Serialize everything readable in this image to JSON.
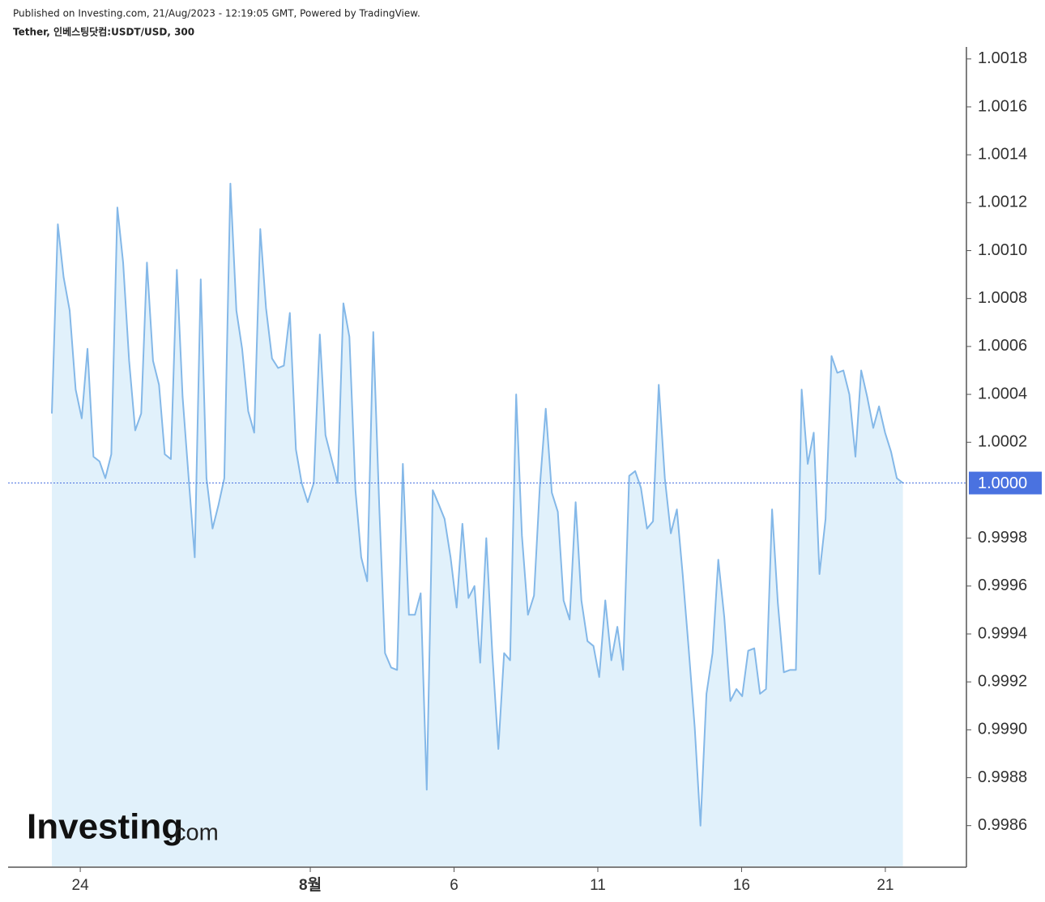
{
  "chart_data": {
    "type": "area",
    "source": "Published on Investing.com, 21/Aug/2023 - 12:19:05 GMT, Powered by TradingView.",
    "title": "Tether, 인베스팅닷컴:USDT/USD, 300",
    "watermark": {
      "brand": "Investing",
      "suffix": ".com"
    },
    "color": "#84b8e8",
    "fill": "#e1f1fb",
    "xlim": [
      21.49,
      54.82
    ],
    "xticks": [
      {
        "value": 24,
        "label": "24"
      },
      {
        "value": 32,
        "label": "8월"
      },
      {
        "value": 37,
        "label": "6"
      },
      {
        "value": 42,
        "label": "11"
      },
      {
        "value": 47,
        "label": "16"
      },
      {
        "value": 52,
        "label": "21"
      }
    ],
    "ylim": [
      0.99843,
      1.00185
    ],
    "yticks": [
      0.9986,
      0.9988,
      {
        "value": 0.999,
        "label": "0.9990"
      },
      0.9992,
      0.9994,
      0.9996,
      0.9998,
      1.0002,
      1.0004,
      1.0006,
      1.0008,
      {
        "value": 1.001,
        "label": "1.0010"
      },
      1.0012,
      1.0014,
      1.0016,
      1.0018
    ],
    "price_line": {
      "value": 1.00003,
      "label": "1.0000",
      "color": "#4a72e0"
    },
    "x": [
      23.01,
      23.22,
      23.42,
      23.63,
      23.84,
      24.05,
      24.25,
      24.46,
      24.67,
      24.87,
      25.08,
      25.29,
      25.49,
      25.7,
      25.91,
      26.12,
      26.32,
      26.53,
      26.74,
      26.94,
      27.15,
      27.36,
      27.56,
      27.77,
      27.98,
      28.19,
      28.39,
      28.6,
      28.81,
      29.01,
      29.22,
      29.43,
      29.63,
      29.84,
      30.05,
      30.26,
      30.46,
      30.67,
      30.88,
      31.08,
      31.29,
      31.5,
      31.7,
      31.91,
      32.12,
      32.33,
      32.53,
      32.74,
      32.95,
      33.15,
      33.36,
      33.57,
      33.77,
      33.98,
      34.19,
      34.4,
      34.6,
      34.81,
      35.02,
      35.22,
      35.43,
      35.64,
      35.84,
      36.05,
      36.26,
      36.47,
      36.67,
      36.88,
      37.09,
      37.29,
      37.5,
      37.71,
      37.91,
      38.12,
      38.33,
      38.54,
      38.74,
      38.95,
      39.16,
      39.36,
      39.57,
      39.78,
      39.98,
      40.19,
      40.4,
      40.61,
      40.81,
      41.02,
      41.23,
      41.43,
      41.64,
      41.85,
      42.05,
      42.26,
      42.47,
      42.68,
      42.88,
      43.09,
      43.3,
      43.5,
      43.71,
      43.92,
      44.12,
      44.33,
      44.54,
      44.75,
      44.95,
      45.16,
      45.37,
      45.57,
      45.78,
      45.99,
      46.19,
      46.4,
      46.61,
      46.82,
      47.02,
      47.23,
      47.44,
      47.64,
      47.85,
      48.06,
      48.26,
      48.47,
      48.68,
      48.89,
      49.09,
      49.3,
      49.51,
      49.71,
      49.92,
      50.13,
      50.33,
      50.54,
      50.75,
      50.96,
      51.16,
      51.37,
      51.58,
      51.78,
      51.99,
      52.2,
      52.4,
      52.61
    ],
    "values": [
      1.00032,
      1.00111,
      1.00089,
      1.00075,
      1.00042,
      1.0003,
      1.00059,
      1.00014,
      1.00012,
      1.00005,
      1.00015,
      1.00118,
      1.00095,
      1.00054,
      1.00025,
      1.00032,
      1.00095,
      1.00054,
      1.00044,
      1.00015,
      1.00013,
      1.00092,
      1.00039,
      1.00005,
      0.99972,
      1.00088,
      1.00005,
      0.99984,
      0.99994,
      1.00005,
      1.00128,
      1.00075,
      1.00059,
      1.00033,
      1.00024,
      1.00109,
      1.00076,
      1.00055,
      1.00051,
      1.00052,
      1.00074,
      1.00017,
      1.00003,
      0.99995,
      1.00003,
      1.00065,
      1.00023,
      1.00013,
      1.00003,
      1.00078,
      1.00064,
      1.0,
      0.99972,
      0.99962,
      1.00066,
      0.99993,
      0.99932,
      0.99926,
      0.99925,
      1.00011,
      0.99948,
      0.99948,
      0.99957,
      0.99875,
      1.0,
      0.99994,
      0.99988,
      0.99972,
      0.99951,
      0.99986,
      0.99955,
      0.9996,
      0.99928,
      0.9998,
      0.99932,
      0.99892,
      0.99932,
      0.99929,
      1.0004,
      0.99981,
      0.99948,
      0.99956,
      1.00001,
      1.00034,
      0.99999,
      0.99991,
      0.99954,
      0.99946,
      0.99995,
      0.99954,
      0.99937,
      0.99935,
      0.99922,
      0.99954,
      0.99929,
      0.99943,
      0.99925,
      1.00006,
      1.00008,
      1.00001,
      0.99984,
      0.99987,
      1.00044,
      1.00005,
      0.99982,
      0.99992,
      0.99965,
      0.99934,
      0.99901,
      0.9986,
      0.99915,
      0.99932,
      0.99971,
      0.99947,
      0.99912,
      0.99917,
      0.99914,
      0.99933,
      0.99934,
      0.99915,
      0.99917,
      0.99992,
      0.99953,
      0.99924,
      0.99925,
      0.99925,
      1.00042,
      1.00011,
      1.00024,
      0.99965,
      0.99988,
      1.00056,
      1.00049,
      1.0005,
      1.0004,
      1.00014,
      1.0005,
      1.00039,
      1.00026,
      1.00035,
      1.00024,
      1.00016,
      1.00005,
      1.00003
    ]
  }
}
